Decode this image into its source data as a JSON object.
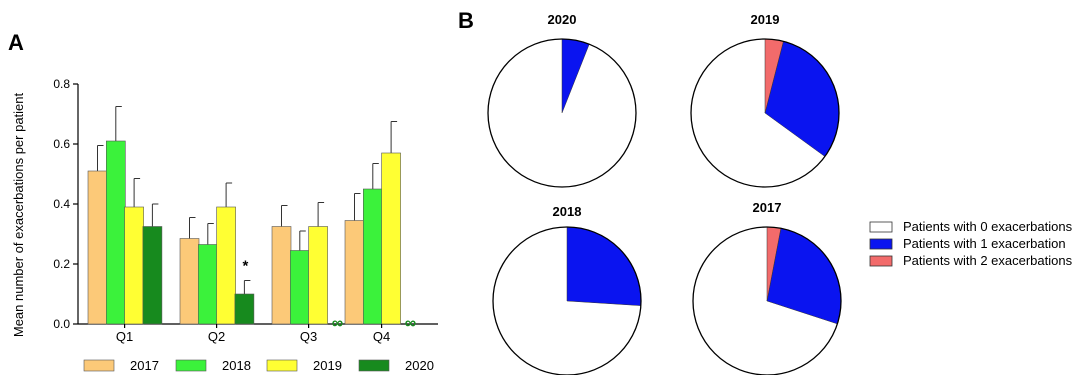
{
  "panels": {
    "a_label": "A",
    "b_label": "B"
  },
  "colors": {
    "2017": "#FCC978",
    "2018": "#3BF23B",
    "2019": "#FFFF33",
    "2020": "#178A1E",
    "pie_zero": "#FFFFFF",
    "pie_one": "#0A14F0",
    "pie_two": "#F26B6B"
  },
  "chart_data": [
    {
      "type": "bar",
      "panel": "A",
      "ylabel": "Mean number of exacerbations per patient",
      "xlabel": "",
      "ylim": [
        0,
        0.8
      ],
      "yticks": [
        "0.0",
        "0.2",
        "0.4",
        "0.6",
        "0.8"
      ],
      "categories": [
        "Q1",
        "Q2",
        "Q3",
        "Q4"
      ],
      "series": [
        {
          "name": "2017",
          "values": [
            0.51,
            0.285,
            0.325,
            0.345
          ],
          "errors": [
            0.085,
            0.07,
            0.07,
            0.09
          ]
        },
        {
          "name": "2018",
          "values": [
            0.61,
            0.265,
            0.245,
            0.45
          ],
          "errors": [
            0.115,
            0.07,
            0.065,
            0.085
          ]
        },
        {
          "name": "2019",
          "values": [
            0.39,
            0.39,
            0.325,
            0.57
          ],
          "errors": [
            0.095,
            0.08,
            0.08,
            0.105
          ]
        },
        {
          "name": "2020",
          "values": [
            0.325,
            0.1,
            0,
            0
          ],
          "errors": [
            0.075,
            0.045,
            0,
            0
          ]
        }
      ],
      "annotations": [
        {
          "category": "Q2",
          "series": "2020",
          "text": "*"
        },
        {
          "category": "Q3",
          "series": "2020",
          "text": "∞"
        },
        {
          "category": "Q4",
          "series": "2020",
          "text": "∞"
        }
      ],
      "legend": {
        "placement": "bottom",
        "entries": [
          "2017",
          "2018",
          "2019",
          "2020"
        ]
      },
      "grid": false
    },
    {
      "type": "pie",
      "panel": "B",
      "title": "2020",
      "slices": [
        {
          "label": "Patients with 0 exacerbations",
          "value": 0.94
        },
        {
          "label": "Patients with 1 exacerbation",
          "value": 0.06
        },
        {
          "label": "Patients with 2 exacerbations",
          "value": 0
        }
      ]
    },
    {
      "type": "pie",
      "panel": "B",
      "title": "2019",
      "slices": [
        {
          "label": "Patients with 0 exacerbations",
          "value": 0.65
        },
        {
          "label": "Patients with 1 exacerbation",
          "value": 0.31
        },
        {
          "label": "Patients with 2 exacerbations",
          "value": 0.04
        }
      ]
    },
    {
      "type": "pie",
      "panel": "B",
      "title": "2018",
      "slices": [
        {
          "label": "Patients with 0 exacerbations",
          "value": 0.74
        },
        {
          "label": "Patients with 1 exacerbation",
          "value": 0.26
        },
        {
          "label": "Patients with 2 exacerbations",
          "value": 0
        }
      ]
    },
    {
      "type": "pie",
      "panel": "B",
      "title": "2017",
      "slices": [
        {
          "label": "Patients with 0 exacerbations",
          "value": 0.7
        },
        {
          "label": "Patients with 1 exacerbation",
          "value": 0.27
        },
        {
          "label": "Patients with 2 exacerbations",
          "value": 0.03
        }
      ]
    }
  ],
  "pie_legend": {
    "placement": "right",
    "entries": [
      "Patients with 0 exacerbations",
      "Patients with 1 exacerbation",
      "Patients with 2 exacerbations"
    ]
  }
}
